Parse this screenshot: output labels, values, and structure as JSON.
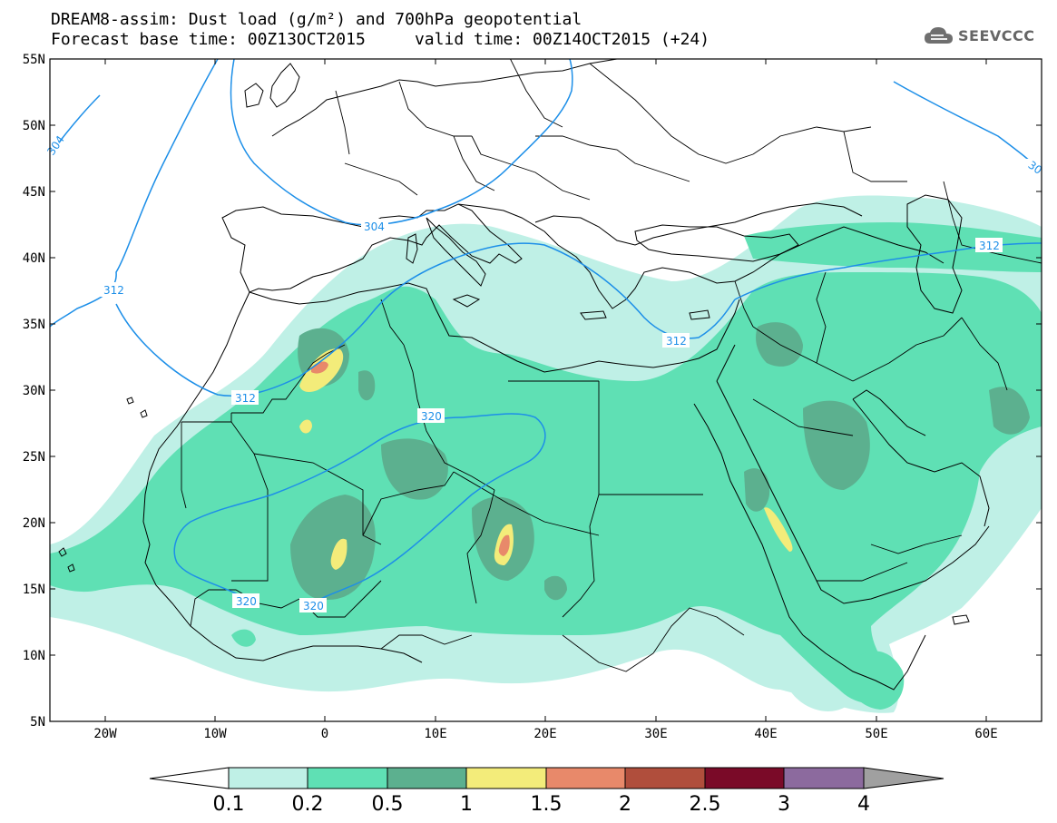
{
  "header": {
    "line1": "DREAM8-assim: Dust load (g/m²) and 700hPa geopotential",
    "line2": "Forecast base time: 00Z13OCT2015     valid time: 00Z14OCT2015 (+24)"
  },
  "logo": {
    "text": "SEEVCCC",
    "icon": "cloud-icon"
  },
  "map": {
    "lon_range": [
      -25,
      65
    ],
    "lat_range": [
      5,
      55
    ],
    "lat_ticks": [
      "55N",
      "50N",
      "45N",
      "40N",
      "35N",
      "30N",
      "25N",
      "20N",
      "15N",
      "10N",
      "5N"
    ],
    "lon_ticks": [
      "20W",
      "10W",
      "0",
      "10E",
      "20E",
      "30E",
      "40E",
      "50E",
      "60E"
    ],
    "contour_labels": [
      "304",
      "304",
      "312",
      "312",
      "312",
      "312",
      "320",
      "320",
      "320",
      "312",
      "30"
    ],
    "colors": {
      "isoline": "#1d8fe8",
      "level1": "#bff0e6",
      "level2": "#5fe0b4",
      "level3": "#5cb08f",
      "level4": "#f3ec7a",
      "level5": "#e8896a",
      "level6": "#b04e3c"
    }
  },
  "colorbar": {
    "labels": [
      "0.1",
      "0.2",
      "0.5",
      "1",
      "1.5",
      "2",
      "2.5",
      "3",
      "4"
    ],
    "colors": [
      "#bff0e6",
      "#5fe0b4",
      "#5cb08f",
      "#f3ec7a",
      "#e8896a",
      "#b04e3c",
      "#7a0a28",
      "#8c6a9e",
      "#a0a0a0"
    ]
  }
}
